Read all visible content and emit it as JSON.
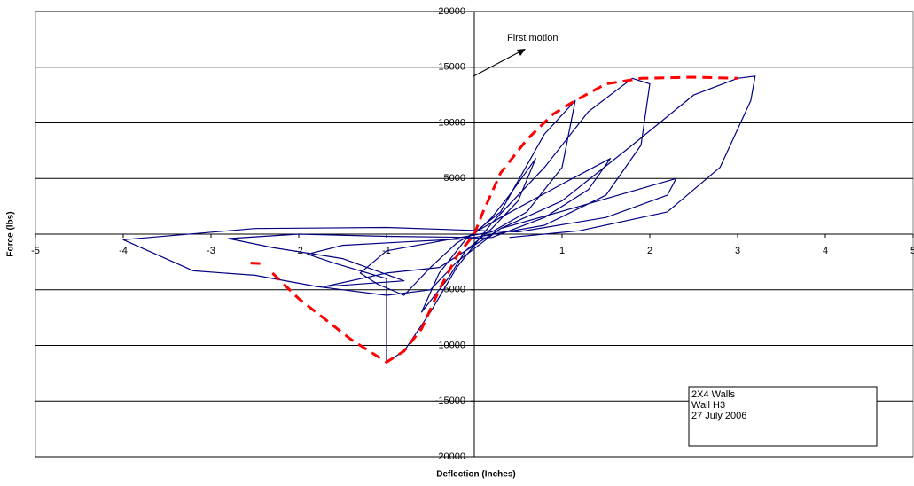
{
  "chart_data": {
    "type": "line",
    "x_label": "Deflection (Inches)",
    "y_label": "Force (lbs)",
    "xlim": [
      -5,
      5
    ],
    "ylim": [
      -20000,
      20000
    ],
    "xticks": [
      -5,
      -4,
      -3,
      -2,
      -1,
      1,
      2,
      3,
      4,
      5
    ],
    "yticks": [
      -20000,
      -15000,
      -10000,
      -5000,
      5000,
      10000,
      15000,
      20000
    ],
    "grid": true,
    "annotation": "First motion",
    "text_box": [
      "2X4 Walls",
      "Wall H3",
      "27 July 2006"
    ],
    "series": [
      {
        "color": "#000080",
        "dashed": false,
        "x": [
          0,
          0.2,
          0.4,
          0.7,
          0.5,
          0.2,
          -0.1,
          -0.3,
          -0.6,
          -0.4,
          -0.1,
          0.3,
          0.8,
          1.15,
          1.0,
          0.6,
          0.2,
          -0.3,
          -1.0,
          -1.3,
          -1.1,
          -0.8,
          -0.5,
          -0.2,
          0.3,
          1.0,
          1.55,
          1.3,
          0.8,
          0.2,
          -0.8,
          -1.5,
          -1.9,
          -1.6,
          -1.0,
          -1.0,
          -0.8,
          -0.5,
          -0.2,
          0.2,
          0.8,
          1.3,
          1.8,
          2.0,
          1.9,
          1.5,
          0.8,
          0,
          -1.0,
          -2.0,
          -2.8,
          -2.3,
          -1.5,
          -0.8,
          -1.5,
          -1.7,
          -1.0,
          -0.4,
          0.3,
          1.2,
          2.3,
          2.2,
          1.5,
          0.5,
          -1.0,
          -2.5,
          -4.0,
          -3.2,
          -2.5,
          -1.8,
          -1.0,
          -0.5,
          -0.2,
          0.3,
          1.0,
          1.8,
          2.5,
          3.0,
          3.2,
          3.15,
          2.8,
          2.2,
          1.2,
          0.4
        ],
        "values": [
          0,
          1500,
          3500,
          6800,
          3000,
          500,
          -1500,
          -4000,
          -7000,
          -3500,
          -500,
          2000,
          9000,
          12000,
          6000,
          2000,
          200,
          -500,
          -1500,
          -3500,
          -4500,
          -5500,
          -3000,
          -800,
          1500,
          4500,
          6800,
          4000,
          1500,
          -300,
          -700,
          -1000,
          -1800,
          -2600,
          -4000,
          -11500,
          -10500,
          -7000,
          -3000,
          1000,
          6000,
          11000,
          14000,
          13500,
          8000,
          3500,
          800,
          -300,
          -200,
          0,
          -400,
          -1200,
          -2200,
          -4200,
          -4600,
          -4700,
          -3500,
          -3000,
          500,
          2500,
          5000,
          3500,
          1500,
          200,
          600,
          500,
          -500,
          -3300,
          -3700,
          -4700,
          -5500,
          -5000,
          -2500,
          500,
          3000,
          8000,
          12500,
          14000,
          14200,
          12000,
          6000,
          2000,
          300,
          -300
        ]
      },
      {
        "color": "#ff0000",
        "dashed": true,
        "x": [
          -2.55,
          -2.4,
          null,
          -2.3,
          -2.0,
          -1.4,
          -1.0,
          -0.8,
          -0.6,
          -0.4,
          -0.2,
          0,
          0.1,
          0.3,
          0.6,
          0.9,
          1.15,
          1.5,
          1.9,
          2.5,
          3.0
        ],
        "values": [
          -2600,
          -2650,
          null,
          -3500,
          -5800,
          -9500,
          -11500,
          -10500,
          -8500,
          -5000,
          -2000,
          0,
          2000,
          5500,
          8500,
          10800,
          12000,
          13500,
          14000,
          14100,
          14000
        ]
      }
    ]
  }
}
